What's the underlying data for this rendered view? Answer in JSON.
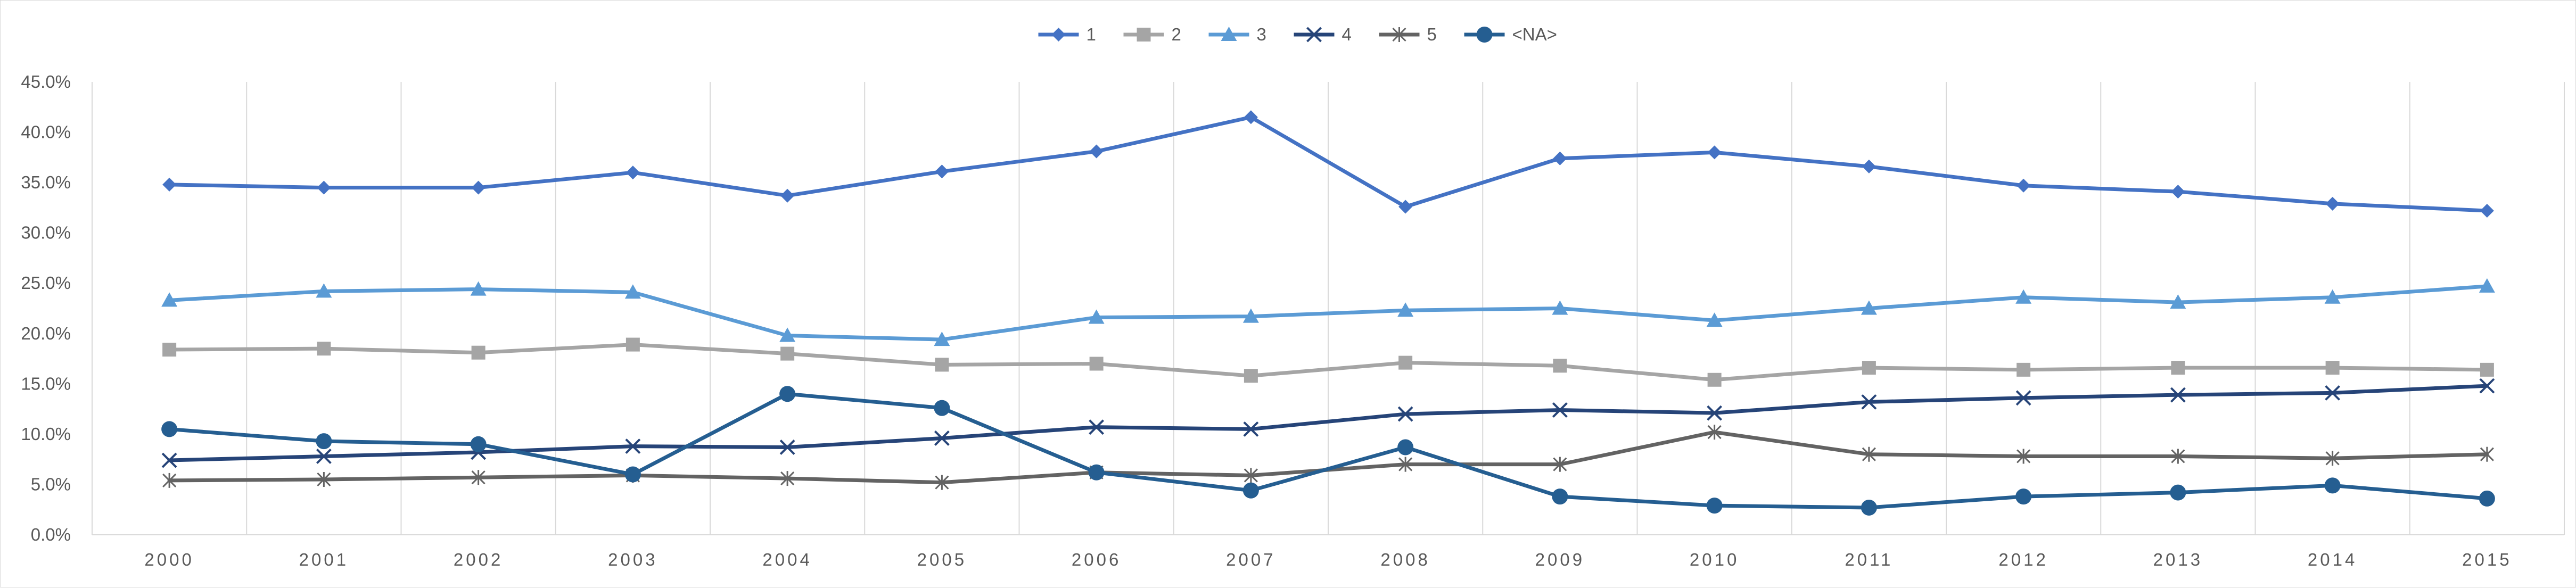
{
  "chart_data": {
    "type": "line",
    "title": "",
    "xlabel": "",
    "ylabel": "",
    "x": [
      "2000",
      "2001",
      "2002",
      "2003",
      "2004",
      "2005",
      "2006",
      "2007",
      "2008",
      "2009",
      "2010",
      "2011",
      "2012",
      "2013",
      "2014",
      "2015"
    ],
    "ylim": [
      0,
      0.45
    ],
    "y_ticks": [
      "0.0%",
      "5.0%",
      "10.0%",
      "15.0%",
      "20.0%",
      "25.0%",
      "30.0%",
      "35.0%",
      "40.0%",
      "45.0%"
    ],
    "grid": "vertical",
    "legend_position": "top-center",
    "series": [
      {
        "name": "1",
        "color": "#4472c4",
        "marker": "diamond",
        "values": [
          0.348,
          0.345,
          0.345,
          0.36,
          0.337,
          0.361,
          0.381,
          0.415,
          0.326,
          0.374,
          0.38,
          0.366,
          0.347,
          0.341,
          0.329,
          0.322
        ]
      },
      {
        "name": "2",
        "color": "#a5a5a5",
        "marker": "square",
        "values": [
          0.184,
          0.185,
          0.181,
          0.189,
          0.18,
          0.169,
          0.17,
          0.158,
          0.171,
          0.168,
          0.154,
          0.166,
          0.164,
          0.166,
          0.166,
          0.164
        ]
      },
      {
        "name": "3",
        "color": "#5b9bd5",
        "marker": "triangle",
        "values": [
          0.233,
          0.242,
          0.244,
          0.241,
          0.198,
          0.194,
          0.216,
          0.217,
          0.223,
          0.225,
          0.213,
          0.225,
          0.236,
          0.231,
          0.236,
          0.247
        ]
      },
      {
        "name": "4",
        "color": "#264478",
        "marker": "x",
        "values": [
          0.074,
          0.078,
          0.082,
          0.088,
          0.087,
          0.096,
          0.107,
          0.105,
          0.12,
          0.124,
          0.121,
          0.132,
          0.136,
          0.139,
          0.141,
          0.148
        ]
      },
      {
        "name": "5",
        "color": "#636363",
        "marker": "star",
        "values": [
          0.054,
          0.055,
          0.057,
          0.059,
          0.056,
          0.052,
          0.062,
          0.059,
          0.07,
          0.07,
          0.102,
          0.08,
          0.078,
          0.078,
          0.076,
          0.08
        ]
      },
      {
        "name": "<NA>",
        "color": "#255e91",
        "marker": "circle",
        "values": [
          0.105,
          0.093,
          0.09,
          0.06,
          0.14,
          0.126,
          0.062,
          0.044,
          0.087,
          0.038,
          0.029,
          0.027,
          0.038,
          0.042,
          0.049,
          0.036
        ]
      }
    ]
  }
}
